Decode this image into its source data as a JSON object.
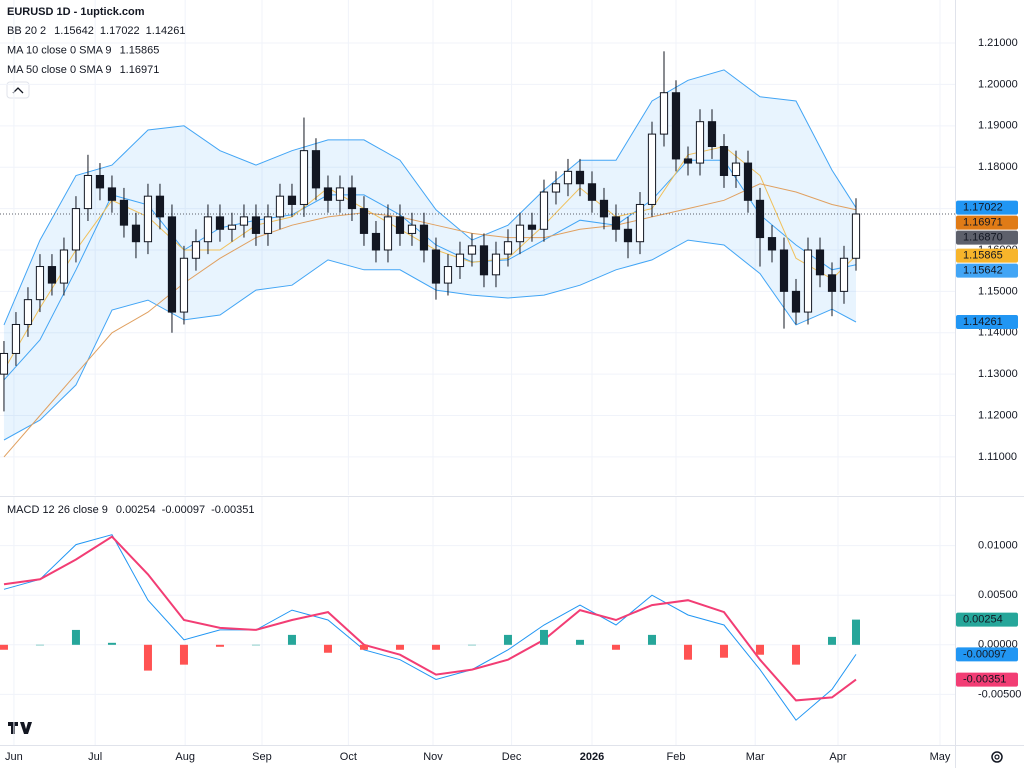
{
  "chart_data": [
    {
      "type": "candlestick",
      "title": "EURUSD 1D - 1uptick.com",
      "x": [
        0,
        1,
        2,
        3,
        4,
        5,
        6,
        7,
        8,
        9,
        10,
        11,
        12,
        13,
        14,
        15,
        16,
        17,
        18,
        19,
        20,
        21,
        22,
        23,
        24,
        25,
        26,
        27,
        28,
        29,
        30,
        31,
        32,
        33,
        34,
        35,
        36,
        37,
        38,
        39,
        40,
        41,
        42,
        43,
        44,
        45,
        46,
        47,
        48,
        49,
        50,
        51,
        52,
        53,
        54,
        55,
        56,
        57,
        58,
        59,
        60,
        61,
        62,
        63,
        64,
        65,
        66,
        67,
        68,
        69,
        70,
        71
      ],
      "candles": [
        [
          1.13,
          1.138,
          1.121,
          1.135
        ],
        [
          1.135,
          1.145,
          1.132,
          1.142
        ],
        [
          1.142,
          1.151,
          1.139,
          1.148
        ],
        [
          1.148,
          1.159,
          1.145,
          1.156
        ],
        [
          1.156,
          1.159,
          1.149,
          1.152
        ],
        [
          1.152,
          1.163,
          1.149,
          1.16
        ],
        [
          1.16,
          1.173,
          1.157,
          1.17
        ],
        [
          1.17,
          1.183,
          1.167,
          1.178
        ],
        [
          1.178,
          1.181,
          1.172,
          1.175
        ],
        [
          1.175,
          1.178,
          1.169,
          1.172
        ],
        [
          1.172,
          1.175,
          1.163,
          1.166
        ],
        [
          1.166,
          1.169,
          1.158,
          1.162
        ],
        [
          1.162,
          1.176,
          1.159,
          1.173
        ],
        [
          1.173,
          1.176,
          1.165,
          1.168
        ],
        [
          1.168,
          1.171,
          1.14,
          1.145
        ],
        [
          1.145,
          1.161,
          1.142,
          1.158
        ],
        [
          1.158,
          1.165,
          1.155,
          1.162
        ],
        [
          1.162,
          1.171,
          1.159,
          1.168
        ],
        [
          1.168,
          1.171,
          1.162,
          1.165
        ],
        [
          1.165,
          1.169,
          1.162,
          1.166
        ],
        [
          1.166,
          1.171,
          1.163,
          1.168
        ],
        [
          1.168,
          1.171,
          1.161,
          1.164
        ],
        [
          1.164,
          1.171,
          1.161,
          1.168
        ],
        [
          1.168,
          1.176,
          1.165,
          1.173
        ],
        [
          1.173,
          1.176,
          1.168,
          1.171
        ],
        [
          1.171,
          1.192,
          1.168,
          1.184
        ],
        [
          1.184,
          1.187,
          1.172,
          1.175
        ],
        [
          1.175,
          1.178,
          1.169,
          1.172
        ],
        [
          1.172,
          1.178,
          1.169,
          1.175
        ],
        [
          1.175,
          1.178,
          1.167,
          1.17
        ],
        [
          1.17,
          1.173,
          1.161,
          1.164
        ],
        [
          1.164,
          1.167,
          1.157,
          1.16
        ],
        [
          1.16,
          1.171,
          1.157,
          1.168
        ],
        [
          1.168,
          1.171,
          1.161,
          1.164
        ],
        [
          1.164,
          1.169,
          1.161,
          1.166
        ],
        [
          1.166,
          1.169,
          1.157,
          1.16
        ],
        [
          1.16,
          1.163,
          1.148,
          1.152
        ],
        [
          1.152,
          1.159,
          1.149,
          1.156
        ],
        [
          1.156,
          1.162,
          1.153,
          1.159
        ],
        [
          1.159,
          1.164,
          1.156,
          1.161
        ],
        [
          1.161,
          1.164,
          1.151,
          1.154
        ],
        [
          1.154,
          1.162,
          1.151,
          1.159
        ],
        [
          1.159,
          1.165,
          1.156,
          1.162
        ],
        [
          1.162,
          1.169,
          1.159,
          1.166
        ],
        [
          1.166,
          1.169,
          1.162,
          1.165
        ],
        [
          1.165,
          1.177,
          1.162,
          1.174
        ],
        [
          1.174,
          1.179,
          1.171,
          1.176
        ],
        [
          1.176,
          1.182,
          1.173,
          1.179
        ],
        [
          1.179,
          1.182,
          1.173,
          1.176
        ],
        [
          1.176,
          1.179,
          1.169,
          1.172
        ],
        [
          1.172,
          1.175,
          1.165,
          1.168
        ],
        [
          1.168,
          1.171,
          1.162,
          1.165
        ],
        [
          1.165,
          1.168,
          1.158,
          1.162
        ],
        [
          1.162,
          1.174,
          1.159,
          1.171
        ],
        [
          1.171,
          1.191,
          1.168,
          1.188
        ],
        [
          1.188,
          1.208,
          1.185,
          1.198
        ],
        [
          1.198,
          1.201,
          1.179,
          1.182
        ],
        [
          1.182,
          1.185,
          1.178,
          1.181
        ],
        [
          1.181,
          1.194,
          1.178,
          1.191
        ],
        [
          1.191,
          1.194,
          1.182,
          1.185
        ],
        [
          1.185,
          1.188,
          1.175,
          1.178
        ],
        [
          1.178,
          1.184,
          1.175,
          1.181
        ],
        [
          1.181,
          1.184,
          1.169,
          1.172
        ],
        [
          1.172,
          1.175,
          1.156,
          1.163
        ],
        [
          1.163,
          1.166,
          1.157,
          1.16
        ],
        [
          1.16,
          1.163,
          1.141,
          1.15
        ],
        [
          1.15,
          1.153,
          1.142,
          1.145
        ],
        [
          1.145,
          1.163,
          1.142,
          1.16
        ],
        [
          1.16,
          1.163,
          1.151,
          1.154
        ],
        [
          1.154,
          1.157,
          1.144,
          1.15
        ],
        [
          1.15,
          1.161,
          1.147,
          1.158
        ],
        [
          1.158,
          1.1725,
          1.155,
          1.1687
        ]
      ],
      "up_color": "#ffffff",
      "down_color": "#131722",
      "line_x": [
        0,
        3,
        6,
        9,
        12,
        15,
        18,
        21,
        24,
        27,
        30,
        33,
        36,
        39,
        42,
        45,
        48,
        51,
        54,
        57,
        60,
        63,
        66,
        69,
        71
      ],
      "indicators": [
        {
          "name": "BB 20 2",
          "color": "#2196f3",
          "fill": "rgba(33,150,243,0.10)",
          "readouts": [
            "1.15642",
            "1.17022",
            "1.14261"
          ],
          "lines": [
            {
              "color": "#42a5f5",
              "values": [
                1.1286,
                1.1383,
                1.1552,
                1.1733,
                1.1709,
                1.16,
                1.1653,
                1.1672,
                1.1685,
                1.1733,
                1.1733,
                1.1685,
                1.1612,
                1.1571,
                1.1576,
                1.1624,
                1.1672,
                1.166,
                1.1721,
                1.1817,
                1.1817,
                1.1685,
                1.1612,
                1.1552,
                1.15642
              ]
            },
            {
              "color": "#42a5f5",
              "values": [
                1.1419,
                1.1624,
                1.178,
                1.1805,
                1.189,
                1.19,
                1.184,
                1.1805,
                1.184,
                1.1866,
                1.1866,
                1.1817,
                1.1697,
                1.1624,
                1.166,
                1.1745,
                1.1817,
                1.1817,
                1.196,
                1.201,
                1.2035,
                1.197,
                1.196,
                1.1793,
                1.17022
              ]
            },
            {
              "color": "#42a5f5",
              "values": [
                1.1141,
                1.1189,
                1.1274,
                1.1455,
                1.1479,
                1.1431,
                1.1443,
                1.1503,
                1.1515,
                1.1576,
                1.1552,
                1.1552,
                1.1503,
                1.1491,
                1.1484,
                1.1491,
                1.1515,
                1.1552,
                1.1576,
                1.1624,
                1.1612,
                1.1543,
                1.1419,
                1.1457,
                1.14261
              ]
            }
          ]
        },
        {
          "name": "MA 10 close 0 SMA 9",
          "color": "#f0b232",
          "readouts": [
            "1.15865"
          ],
          "lines": [
            {
              "color": "#f0c05a",
              "values": [
                1.131,
                1.146,
                1.16,
                1.172,
                1.168,
                1.16,
                1.16,
                1.166,
                1.168,
                1.175,
                1.17,
                1.165,
                1.16,
                1.157,
                1.158,
                1.166,
                1.175,
                1.168,
                1.17,
                1.183,
                1.185,
                1.178,
                1.158,
                1.153,
                1.15865
              ]
            }
          ]
        },
        {
          "name": "MA 50 close 0 SMA 9",
          "color": "#e07b16",
          "readouts": [
            "1.16971"
          ],
          "lines": [
            {
              "color": "#e0a060",
              "values": [
                1.11,
                1.12,
                1.13,
                1.14,
                1.145,
                1.152,
                1.158,
                1.163,
                1.166,
                1.168,
                1.169,
                1.168,
                1.166,
                1.164,
                1.163,
                1.163,
                1.165,
                1.166,
                1.168,
                1.17,
                1.172,
                1.176,
                1.174,
                1.171,
                1.16971
              ]
            }
          ]
        }
      ],
      "badges": [
        {
          "value": 1.17022,
          "label": "1.17022",
          "color": "#2196f3"
        },
        {
          "value": 1.16971,
          "label": "1.16971",
          "color": "#e07b16"
        },
        {
          "value": 1.1687,
          "label": "1.16870",
          "color": "#5d606b"
        },
        {
          "value": 1.15865,
          "label": "1.15865",
          "color": "#f7b52b"
        },
        {
          "value": 1.15642,
          "label": "1.15642",
          "color": "#42a5f5"
        },
        {
          "value": 1.14261,
          "label": "1.14261",
          "color": "#2196f3"
        }
      ],
      "xlim": [
        -0.33,
        79.25
      ],
      "xticks": [
        {
          "value": 0.83,
          "label": "Jun"
        },
        {
          "value": 7.6,
          "label": "Jul"
        },
        {
          "value": 15.1,
          "label": "Aug"
        },
        {
          "value": 21.5,
          "label": "Sep"
        },
        {
          "value": 28.7,
          "label": "Oct"
        },
        {
          "value": 35.75,
          "label": "Nov"
        },
        {
          "value": 42.3,
          "label": "Dec"
        },
        {
          "value": 49,
          "label": "2026",
          "bold": true
        },
        {
          "value": 56,
          "label": "Feb"
        },
        {
          "value": 62.6,
          "label": "Mar"
        },
        {
          "value": 69.5,
          "label": "Apr"
        },
        {
          "value": 78,
          "label": "May"
        }
      ],
      "ylim": [
        1.1008,
        1.2204
      ],
      "yticks": [
        {
          "value": 1.11,
          "label": "1.11000"
        },
        {
          "value": 1.12,
          "label": "1.12000"
        },
        {
          "value": 1.13,
          "label": "1.13000"
        },
        {
          "value": 1.14,
          "label": "1.14000"
        },
        {
          "value": 1.15,
          "label": "1.15000"
        },
        {
          "value": 1.16,
          "label": "1.16000"
        },
        {
          "value": 1.17,
          "label": "1.17000"
        },
        {
          "value": 1.18,
          "label": "1.18000"
        },
        {
          "value": 1.19,
          "label": "1.19000"
        },
        {
          "value": 1.2,
          "label": "1.20000"
        },
        {
          "value": 1.21,
          "label": "1.21000"
        }
      ],
      "grid": true
    },
    {
      "type": "macd",
      "title": "MACD 12 26 close 9",
      "readouts": [
        {
          "text": "0.00254",
          "color": "#26a69a"
        },
        {
          "text": "-0.00097",
          "color": "#2196f3"
        },
        {
          "text": "-0.00351",
          "color": "#f23d74"
        }
      ],
      "x": [
        0,
        3,
        6,
        9,
        12,
        15,
        18,
        21,
        24,
        27,
        30,
        33,
        36,
        39,
        42,
        45,
        48,
        51,
        54,
        57,
        60,
        63,
        66,
        69,
        71
      ],
      "series": [
        {
          "color": "#2196f3",
          "values": [
            0.0056,
            0.0066,
            0.0101,
            0.0111,
            0.0045,
            0.0005,
            0.0015,
            0.0015,
            0.0035,
            0.0025,
            -0.0005,
            -0.0015,
            -0.0035,
            -0.0025,
            -0.0005,
            0.002,
            0.004,
            0.002,
            0.005,
            0.003,
            0.002,
            -0.0025,
            -0.0076,
            -0.0045,
            -0.00097
          ]
        },
        {
          "color": "#f23d74",
          "values": [
            0.0061,
            0.0066,
            0.0086,
            0.0109,
            0.0071,
            0.0025,
            0.0017,
            0.0015,
            0.0025,
            0.0033,
            0.0,
            -0.001,
            -0.003,
            -0.0025,
            -0.0015,
            0.0005,
            0.0035,
            0.0025,
            0.004,
            0.0045,
            0.0033,
            -0.0015,
            -0.0056,
            -0.0053,
            -0.00351
          ]
        }
      ],
      "histogram": {
        "up_color": "#26a69a",
        "down_color": "#ff5252",
        "values": [
          -0.0005,
          0,
          0.0015,
          0.0002,
          -0.0026,
          -0.002,
          -0.0002,
          0,
          0.001,
          -0.0008,
          -0.0005,
          -0.0005,
          -0.0005,
          0,
          0.001,
          0.0015,
          0.0005,
          -0.0005,
          0.001,
          -0.0015,
          -0.0013,
          -0.001,
          -0.002,
          0.0008,
          0.00254
        ]
      },
      "badges": [
        {
          "value": 0.00254,
          "label": "0.00254",
          "color": "#26a69a"
        },
        {
          "value": -0.00097,
          "label": "-0.00097",
          "color": "#2196f3"
        },
        {
          "value": -0.00351,
          "label": "-0.00351",
          "color": "#f23d74"
        }
      ],
      "ylim": [
        -0.0101,
        0.0149
      ],
      "yticks": [
        {
          "value": 0.01,
          "label": "0.01000"
        },
        {
          "value": 0.005,
          "label": "0.00500"
        },
        {
          "value": 0,
          "label": "0.00000"
        },
        {
          "value": -0.005,
          "label": "-0.00500"
        }
      ],
      "grid": true
    }
  ]
}
